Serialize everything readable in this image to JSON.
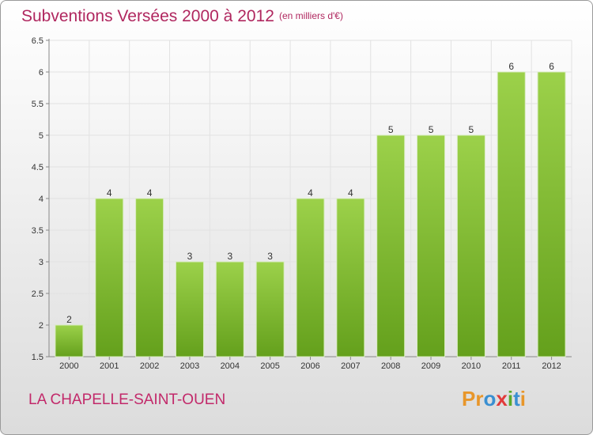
{
  "header": {
    "title": "Subventions Versées 2000 à 2012",
    "subtitle": "(en milliers d'€)"
  },
  "footer": {
    "commune": "LA CHAPELLE-SAINT-OUEN",
    "logo_letters": [
      "P",
      "r",
      "o",
      "x",
      "i",
      "t",
      "i"
    ],
    "logo_colors": [
      "#e8962a",
      "#e8962a",
      "#3a8fd1",
      "#e23a3a",
      "#5aaa2a",
      "#3a8fd1",
      "#e8962a"
    ]
  },
  "chart_data": {
    "type": "bar",
    "categories": [
      "2000",
      "2001",
      "2002",
      "2003",
      "2004",
      "2005",
      "2006",
      "2007",
      "2008",
      "2009",
      "2010",
      "2011",
      "2012"
    ],
    "values": [
      2,
      4,
      4,
      3,
      3,
      3,
      4,
      4,
      5,
      5,
      5,
      6,
      6
    ],
    "data_labels": [
      "2",
      "4",
      "4",
      "3",
      "3",
      "3",
      "4",
      "4",
      "5",
      "5",
      "5",
      "6",
      "6"
    ],
    "ylim": [
      1.5,
      6.5
    ],
    "yticks": [
      "1.5",
      "2",
      "2.5",
      "3",
      "3.5",
      "4",
      "4.5",
      "5",
      "5.5",
      "6",
      "6.5"
    ],
    "grid": true,
    "bar_color": "#8cc63f"
  }
}
